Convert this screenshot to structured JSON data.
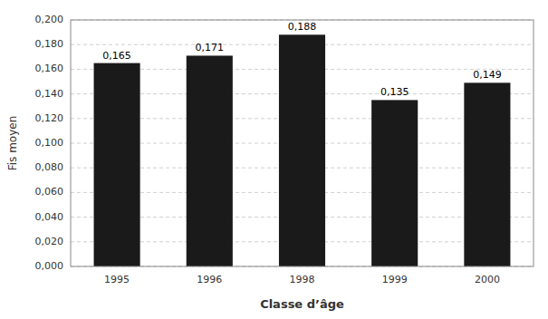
{
  "chart_data": {
    "type": "bar",
    "categories": [
      "1995",
      "1996",
      "1998",
      "1999",
      "2000"
    ],
    "values": [
      0.165,
      0.171,
      0.188,
      0.135,
      0.149
    ],
    "value_labels": [
      "0,165",
      "0,171",
      "0,188",
      "0,135",
      "0,149"
    ],
    "data_labels": true,
    "color": "#1a1a1a",
    "x_label": "Classe d’âge",
    "y_label": "Fis moyen",
    "ylim": [
      0,
      0.2
    ],
    "yticks": [
      {
        "value": 0,
        "label": "0,000"
      },
      {
        "value": 0.02,
        "label": "0,020"
      },
      {
        "value": 0.04,
        "label": "0,040"
      },
      {
        "value": 0.06,
        "label": "0,060"
      },
      {
        "value": 0.08,
        "label": "0,080"
      },
      {
        "value": 0.1,
        "label": "0,100"
      },
      {
        "value": 0.12,
        "label": "0,120"
      },
      {
        "value": 0.14,
        "label": "0,140"
      },
      {
        "value": 0.16,
        "label": "0,160"
      },
      {
        "value": 0.18,
        "label": "0,180"
      },
      {
        "value": 0.2,
        "label": "0,200"
      }
    ],
    "grid": true
  }
}
